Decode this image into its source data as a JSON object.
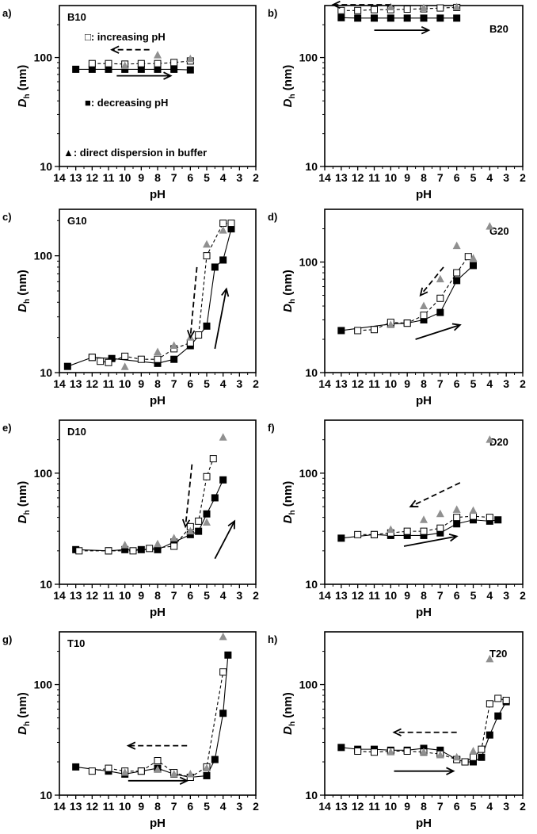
{
  "legend": {
    "increasing": "□: increasing  pH",
    "decreasing": "■: decreasing  pH",
    "direct": "▲: direct dispersion in buffer"
  },
  "axis_text": {
    "x_label": "pH",
    "y_label_main": "D",
    "y_label_sub": "h",
    "y_label_unit": " (nm)"
  },
  "colors": {
    "increasing_face": "#ffffff",
    "decreasing_face": "#000000",
    "direct_face": "#909090",
    "line": "#000000"
  },
  "chart_data": [
    {
      "type": "scatter",
      "panel": "a)",
      "title": "B10",
      "xlim": [
        14,
        2
      ],
      "ylim": [
        10,
        300
      ],
      "yscale": "log",
      "x_ticks": [
        14,
        13,
        12,
        11,
        10,
        9,
        8,
        7,
        6,
        5,
        4,
        3,
        2
      ],
      "y_ticks": [
        10,
        100
      ],
      "series": [
        {
          "name": "decreasing pH",
          "x": [
            13,
            12,
            11,
            10,
            9,
            8,
            7,
            6
          ],
          "y": [
            78,
            78,
            78,
            78,
            78,
            78,
            78,
            77
          ]
        },
        {
          "name": "increasing pH",
          "x": [
            12,
            11,
            10,
            9,
            8,
            7,
            6
          ],
          "y": [
            88,
            88,
            87,
            88,
            88,
            90,
            93
          ]
        },
        {
          "name": "direct dispersion in buffer",
          "x": [
            10,
            8,
            6
          ],
          "y": [
            84,
            105,
            97
          ]
        }
      ],
      "arrows": [
        {
          "style": "dashed",
          "from": [
            8.5,
            118
          ],
          "to": [
            10.8,
            118
          ]
        },
        {
          "style": "solid",
          "from": [
            10.5,
            68
          ],
          "to": [
            7.2,
            68
          ]
        }
      ]
    },
    {
      "type": "scatter",
      "panel": "b)",
      "title": "B20",
      "xlim": [
        14,
        2
      ],
      "ylim": [
        10,
        300
      ],
      "yscale": "log",
      "x_ticks": [
        14,
        13,
        12,
        11,
        10,
        9,
        8,
        7,
        6,
        5,
        4,
        3,
        2
      ],
      "y_ticks": [
        10,
        100
      ],
      "series": [
        {
          "name": "decreasing pH",
          "x": [
            13,
            12,
            11,
            10,
            9,
            8,
            7,
            6
          ],
          "y": [
            232,
            230,
            230,
            230,
            230,
            230,
            230,
            230
          ]
        },
        {
          "name": "increasing pH",
          "x": [
            13,
            12,
            11,
            10,
            9,
            8,
            7,
            6
          ],
          "y": [
            270,
            270,
            275,
            275,
            278,
            280,
            285,
            288
          ]
        },
        {
          "name": "direct dispersion in buffer",
          "x": [
            10,
            8,
            6
          ],
          "y": [
            290,
            285,
            290
          ]
        }
      ],
      "arrows": [
        {
          "style": "dashed",
          "from": [
            10,
            305
          ],
          "to": [
            13.5,
            305
          ]
        },
        {
          "style": "solid",
          "from": [
            11,
            178
          ],
          "to": [
            7.7,
            178
          ]
        }
      ]
    },
    {
      "type": "scatter",
      "panel": "c)",
      "title": "G10",
      "xlim": [
        14,
        2
      ],
      "ylim": [
        10,
        250
      ],
      "yscale": "log",
      "x_ticks": [
        14,
        13,
        12,
        11,
        10,
        9,
        8,
        7,
        6,
        5,
        4,
        3,
        2
      ],
      "y_ticks": [
        10,
        100
      ],
      "series": [
        {
          "name": "decreasing pH",
          "x": [
            13.5,
            12,
            10.8,
            8,
            7,
            6,
            5,
            4.5,
            4,
            3.5
          ],
          "y": [
            11.3,
            13.5,
            13.2,
            12,
            13,
            17,
            25,
            80,
            92,
            170
          ]
        },
        {
          "name": "increasing pH",
          "x": [
            12,
            11.5,
            11,
            10,
            9,
            8,
            7,
            6,
            5.5,
            5,
            4,
            3.5
          ],
          "y": [
            13.5,
            12.5,
            12.2,
            13.8,
            13,
            13,
            16,
            18,
            21,
            100,
            190,
            190
          ]
        },
        {
          "name": "direct dispersion in buffer",
          "x": [
            10,
            8,
            7,
            6,
            5,
            4
          ],
          "y": [
            11.2,
            15,
            17,
            20,
            125,
            165
          ]
        }
      ],
      "arrows": [
        {
          "style": "dashed",
          "from": [
            5.6,
            80
          ],
          "to": [
            6.0,
            20
          ]
        },
        {
          "style": "solid",
          "from": [
            4.5,
            16
          ],
          "to": [
            3.8,
            52
          ]
        }
      ]
    },
    {
      "type": "scatter",
      "panel": "d)",
      "title": "G20",
      "xlim": [
        14,
        2
      ],
      "ylim": [
        10,
        300
      ],
      "yscale": "log",
      "x_ticks": [
        14,
        13,
        12,
        11,
        10,
        9,
        8,
        7,
        6,
        5,
        4,
        3,
        2
      ],
      "y_ticks": [
        10,
        100
      ],
      "series": [
        {
          "name": "decreasing pH",
          "x": [
            13,
            10,
            9,
            8,
            7,
            6,
            5
          ],
          "y": [
            24,
            27.5,
            28,
            30,
            35,
            68,
            93
          ]
        },
        {
          "name": "increasing pH",
          "x": [
            12,
            11,
            10,
            9,
            8,
            7,
            6,
            5.3
          ],
          "y": [
            24,
            24.5,
            28.5,
            28,
            33,
            47,
            80,
            112
          ]
        },
        {
          "name": "direct dispersion in buffer",
          "x": [
            10,
            8,
            7,
            6,
            5,
            4
          ],
          "y": [
            27,
            40,
            70,
            140,
            108,
            210
          ]
        }
      ],
      "arrows": [
        {
          "style": "dashed",
          "from": [
            6.8,
            90
          ],
          "to": [
            8.2,
            50
          ]
        },
        {
          "style": "solid",
          "from": [
            8.5,
            20
          ],
          "to": [
            5.8,
            27
          ]
        }
      ]
    },
    {
      "type": "scatter",
      "panel": "e)",
      "title": "D10",
      "xlim": [
        14,
        2
      ],
      "ylim": [
        10,
        300
      ],
      "yscale": "log",
      "x_ticks": [
        14,
        13,
        12,
        11,
        10,
        9,
        8,
        7,
        6,
        5,
        4,
        3,
        2
      ],
      "y_ticks": [
        10,
        100
      ],
      "series": [
        {
          "name": "decreasing pH",
          "x": [
            13,
            11,
            10,
            9,
            8,
            7,
            6,
            5.5,
            5,
            4.5,
            4
          ],
          "y": [
            20.5,
            20,
            20.5,
            20.5,
            20.5,
            24,
            28,
            30,
            43,
            60,
            87
          ]
        },
        {
          "name": "increasing pH",
          "x": [
            12.8,
            11,
            9.5,
            8.5,
            7,
            6,
            5.5,
            5,
            4.6
          ],
          "y": [
            20,
            20,
            20,
            21,
            22,
            33,
            37,
            93,
            135
          ]
        },
        {
          "name": "direct dispersion in buffer",
          "x": [
            10,
            8,
            7,
            6,
            5,
            4
          ],
          "y": [
            22.5,
            23,
            26,
            30,
            36,
            210
          ]
        }
      ],
      "arrows": [
        {
          "style": "dashed",
          "from": [
            5.9,
            120
          ],
          "to": [
            6.3,
            33
          ]
        },
        {
          "style": "solid",
          "from": [
            4.5,
            17
          ],
          "to": [
            3.3,
            37
          ]
        }
      ]
    },
    {
      "type": "scatter",
      "panel": "f)",
      "title": "D20",
      "xlim": [
        14,
        2
      ],
      "ylim": [
        10,
        300
      ],
      "yscale": "log",
      "x_ticks": [
        14,
        13,
        12,
        11,
        10,
        9,
        8,
        7,
        6,
        5,
        4,
        3,
        2
      ],
      "y_ticks": [
        10,
        100
      ],
      "series": [
        {
          "name": "decreasing pH",
          "x": [
            13,
            11,
            10,
            9,
            8,
            7,
            6,
            5,
            4,
            3.5
          ],
          "y": [
            26,
            28,
            27.5,
            27.5,
            27.5,
            29,
            35,
            38,
            37,
            38
          ]
        },
        {
          "name": "increasing pH",
          "x": [
            12,
            11,
            10,
            9,
            8,
            7,
            6,
            5,
            4
          ],
          "y": [
            28,
            28,
            29,
            30,
            30,
            32,
            40,
            41,
            40
          ]
        },
        {
          "name": "direct dispersion in buffer",
          "x": [
            10,
            8,
            7,
            6,
            5,
            4
          ],
          "y": [
            31,
            38,
            43,
            47,
            46,
            200
          ]
        }
      ],
      "arrows": [
        {
          "style": "dashed",
          "from": [
            5.8,
            82
          ],
          "to": [
            8.8,
            50
          ]
        },
        {
          "style": "solid",
          "from": [
            9.2,
            22
          ],
          "to": [
            6.0,
            27
          ]
        }
      ]
    },
    {
      "type": "scatter",
      "panel": "g)",
      "title": "T10",
      "xlim": [
        14,
        2
      ],
      "ylim": [
        10,
        300
      ],
      "yscale": "log",
      "x_ticks": [
        14,
        13,
        12,
        11,
        10,
        9,
        8,
        7,
        6,
        5,
        4,
        3,
        2
      ],
      "y_ticks": [
        10,
        100
      ],
      "series": [
        {
          "name": "decreasing pH",
          "x": [
            13,
            11,
            10,
            9,
            8,
            7,
            6,
            5,
            4.5,
            4,
            3.7
          ],
          "y": [
            18,
            16.5,
            15.5,
            16.5,
            17.5,
            15.5,
            14.5,
            15,
            21,
            55,
            185
          ]
        },
        {
          "name": "increasing pH",
          "x": [
            12,
            11,
            10,
            9,
            8,
            7,
            6,
            5,
            4
          ],
          "y": [
            16.5,
            17.5,
            16.5,
            16.5,
            20.5,
            16,
            14.5,
            18,
            130
          ]
        },
        {
          "name": "direct dispersion in buffer",
          "x": [
            10,
            8,
            7,
            6,
            5,
            4
          ],
          "y": [
            16,
            17,
            15.5,
            15.5,
            17.5,
            270
          ]
        }
      ],
      "arrows": [
        {
          "style": "dashed",
          "from": [
            6.2,
            28
          ],
          "to": [
            9.8,
            28
          ]
        },
        {
          "style": "solid",
          "from": [
            9.8,
            13.5
          ],
          "to": [
            6.2,
            13.5
          ]
        }
      ]
    },
    {
      "type": "scatter",
      "panel": "h)",
      "title": "T20",
      "xlim": [
        14,
        2
      ],
      "ylim": [
        10,
        300
      ],
      "yscale": "log",
      "x_ticks": [
        14,
        13,
        12,
        11,
        10,
        9,
        8,
        7,
        6,
        5,
        4,
        3,
        2
      ],
      "y_ticks": [
        10,
        100
      ],
      "series": [
        {
          "name": "decreasing pH",
          "x": [
            13,
            12,
            11,
            10,
            9,
            8,
            7,
            6,
            5.5,
            5,
            4.5,
            4,
            3.5,
            3
          ],
          "y": [
            27,
            26,
            26,
            25.5,
            25.5,
            26.5,
            25.5,
            21,
            20,
            20,
            22,
            35,
            52,
            70
          ]
        },
        {
          "name": "increasing pH",
          "x": [
            12,
            11,
            10,
            9,
            8,
            7,
            6,
            5.5,
            5,
            4.5,
            4,
            3.5,
            3
          ],
          "y": [
            25,
            24.5,
            25,
            25,
            24.5,
            23.5,
            21,
            20,
            22,
            26,
            67,
            75,
            72
          ]
        },
        {
          "name": "direct dispersion in buffer",
          "x": [
            10,
            8,
            7,
            6,
            5,
            4
          ],
          "y": [
            24.5,
            24.5,
            23,
            22,
            25,
            170
          ]
        }
      ],
      "arrows": [
        {
          "style": "dashed",
          "from": [
            6.0,
            37
          ],
          "to": [
            9.8,
            37
          ]
        },
        {
          "style": "solid",
          "from": [
            9.8,
            16.5
          ],
          "to": [
            6.2,
            16.5
          ]
        }
      ]
    }
  ]
}
